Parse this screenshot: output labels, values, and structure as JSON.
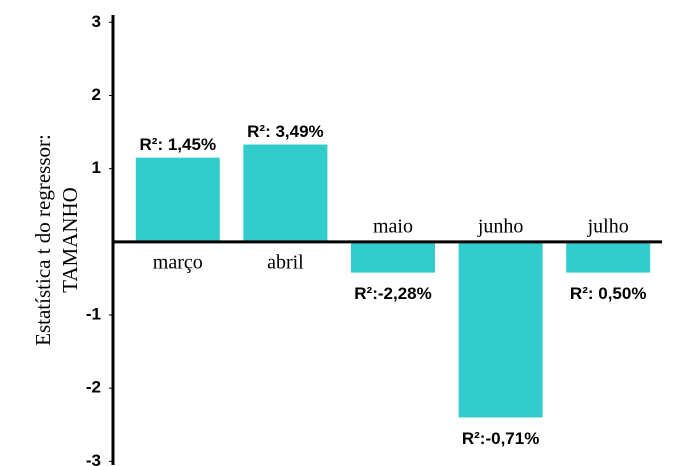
{
  "chart_data": {
    "type": "bar",
    "y_label": [
      "Estatística t  do regressor:",
      "TAMANHO"
    ],
    "categories": [
      "março",
      "abril",
      "maio",
      "junho",
      "julho"
    ],
    "values": [
      1.15,
      1.33,
      -0.42,
      -2.4,
      -0.42
    ],
    "annotations": [
      "R²: 1,45%",
      "R²: 3,49%",
      "R²:-2,28%",
      "R²:-0,71%",
      "R²: 0,50%"
    ],
    "color": "#33cccc",
    "ylim": [
      -3.05,
      3.1
    ],
    "yticks": [
      -3,
      -2,
      -1,
      1,
      2,
      3
    ]
  }
}
